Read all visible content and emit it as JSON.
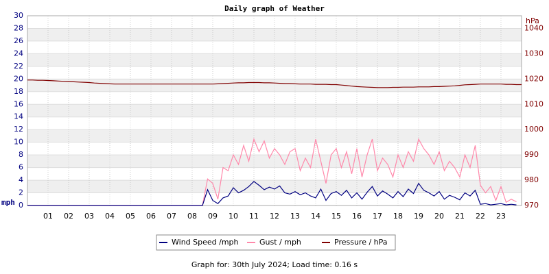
{
  "chart_data": {
    "type": "line",
    "title": "Daily graph of Weather",
    "ylabel": "mph",
    "y2label": "hPa",
    "footer": "Graph for: 30th July 2024; Load time: 0.16 s",
    "grid": true,
    "xlim": [
      0,
      24
    ],
    "xticks": [
      {
        "value": 1,
        "label": "01"
      },
      {
        "value": 2,
        "label": "02"
      },
      {
        "value": 3,
        "label": "03"
      },
      {
        "value": 4,
        "label": "04"
      },
      {
        "value": 5,
        "label": "05"
      },
      {
        "value": 6,
        "label": "06"
      },
      {
        "value": 7,
        "label": "07"
      },
      {
        "value": 8,
        "label": "08"
      },
      {
        "value": 9,
        "label": "09"
      },
      10,
      11,
      12,
      13,
      14,
      15,
      16,
      17,
      18,
      19,
      20,
      21,
      22,
      23
    ],
    "ylim": [
      0,
      30
    ],
    "yticks": [
      0,
      2,
      4,
      6,
      8,
      10,
      12,
      14,
      16,
      18,
      20,
      22,
      24,
      26,
      28,
      30
    ],
    "y2lim": [
      970,
      1045
    ],
    "y2ticks": [
      970,
      980,
      990,
      1000,
      1010,
      1020,
      1030,
      1040
    ],
    "x": [
      0,
      0.25,
      0.5,
      0.75,
      1,
      1.25,
      1.5,
      1.75,
      2,
      2.25,
      2.5,
      2.75,
      3,
      3.25,
      3.5,
      3.75,
      4,
      4.25,
      4.5,
      4.75,
      5,
      5.25,
      5.5,
      5.75,
      6,
      6.25,
      6.5,
      6.75,
      7,
      7.25,
      7.5,
      7.75,
      8,
      8.25,
      8.5,
      8.75,
      9,
      9.25,
      9.5,
      9.75,
      10,
      10.25,
      10.5,
      10.75,
      11,
      11.25,
      11.5,
      11.75,
      12,
      12.25,
      12.5,
      12.75,
      13,
      13.25,
      13.5,
      13.75,
      14,
      14.25,
      14.5,
      14.75,
      15,
      15.25,
      15.5,
      15.75,
      16,
      16.25,
      16.5,
      16.75,
      17,
      17.25,
      17.5,
      17.75,
      18,
      18.25,
      18.5,
      18.75,
      19,
      19.25,
      19.5,
      19.75,
      20,
      20.25,
      20.5,
      20.75,
      21,
      21.25,
      21.5,
      21.75,
      22,
      22.25,
      22.5,
      22.75,
      23,
      23.25,
      23.5,
      23.75,
      24
    ],
    "series": [
      {
        "name": "Wind Speed /mph",
        "color": "#000080",
        "values": [
          0,
          0,
          0,
          0,
          0,
          0,
          0,
          0,
          0,
          0,
          0,
          0,
          0,
          0,
          0,
          0,
          0,
          0,
          0,
          0,
          0,
          0,
          0,
          0,
          0,
          0,
          0,
          0,
          0,
          0,
          0,
          0,
          0,
          0,
          0,
          2.5,
          0.8,
          0.3,
          1.2,
          1.5,
          2.8,
          2.0,
          2.4,
          3.0,
          3.8,
          3.2,
          2.5,
          2.9,
          2.6,
          3.1,
          2.0,
          1.8,
          2.2,
          1.7,
          2.0,
          1.5,
          1.2,
          2.6,
          0.8,
          1.9,
          2.2,
          1.6,
          2.4,
          1.2,
          2.0,
          1.0,
          2.1,
          3.0,
          1.5,
          2.3,
          1.8,
          1.2,
          2.2,
          1.4,
          2.6,
          1.9,
          3.5,
          2.4,
          2.0,
          1.5,
          2.2,
          1.0,
          1.6,
          1.3,
          0.9,
          2.0,
          1.5,
          2.4,
          0.2,
          0.3,
          0.1,
          0.2,
          0.3,
          0.1,
          0.2,
          0.1,
          null
        ]
      },
      {
        "name": "Gust / mph",
        "color": "#ff88aa",
        "values": [
          0,
          0,
          0,
          0,
          0,
          0,
          0,
          0,
          0,
          0,
          0,
          0,
          0,
          0,
          0,
          0,
          0,
          0,
          0,
          0,
          0,
          0,
          0,
          0,
          0,
          0,
          0,
          0,
          0,
          0,
          0,
          0,
          0,
          0,
          0,
          4.2,
          3.5,
          1.0,
          6.0,
          5.5,
          8.0,
          6.5,
          9.5,
          7.0,
          10.5,
          8.5,
          10.2,
          7.5,
          9.0,
          8.0,
          6.5,
          8.5,
          9.0,
          5.5,
          7.5,
          6.0,
          10.5,
          7.0,
          3.5,
          8.0,
          9.0,
          6.0,
          8.5,
          5.0,
          9.0,
          4.5,
          8.0,
          10.5,
          5.5,
          7.5,
          6.5,
          4.5,
          8.0,
          6.0,
          8.5,
          7.0,
          10.5,
          9.0,
          8.0,
          6.5,
          8.5,
          5.5,
          7.0,
          6.0,
          4.5,
          8.0,
          6.0,
          9.5,
          3.2,
          2.0,
          3.0,
          0.8,
          3.0,
          0.5,
          1.0,
          0.6,
          null
        ]
      },
      {
        "name": "Pressure / hPa",
        "color": "#800000",
        "axis": "y2",
        "values": [
          1019.6,
          1019.6,
          1019.5,
          1019.5,
          1019.4,
          1019.3,
          1019.2,
          1019.1,
          1019.0,
          1018.9,
          1018.8,
          1018.7,
          1018.6,
          1018.4,
          1018.3,
          1018.2,
          1018.1,
          1018.0,
          1018.0,
          1018.0,
          1018.0,
          1018.0,
          1018.0,
          1018.0,
          1018.0,
          1018.0,
          1018.0,
          1018.0,
          1018.0,
          1018.0,
          1018.0,
          1018.0,
          1018.0,
          1018.0,
          1018.0,
          1018.0,
          1018.0,
          1018.1,
          1018.2,
          1018.3,
          1018.4,
          1018.5,
          1018.5,
          1018.6,
          1018.6,
          1018.6,
          1018.5,
          1018.5,
          1018.4,
          1018.3,
          1018.2,
          1018.2,
          1018.1,
          1018.0,
          1018.0,
          1018.0,
          1017.9,
          1017.9,
          1017.9,
          1017.8,
          1017.8,
          1017.6,
          1017.4,
          1017.2,
          1017.0,
          1016.9,
          1016.8,
          1016.7,
          1016.6,
          1016.6,
          1016.6,
          1016.7,
          1016.7,
          1016.8,
          1016.8,
          1016.8,
          1016.9,
          1016.9,
          1016.9,
          1017.0,
          1017.0,
          1017.1,
          1017.2,
          1017.3,
          1017.5,
          1017.7,
          1017.8,
          1017.9,
          1018.0,
          1018.0,
          1018.0,
          1018.0,
          1018.0,
          1017.9,
          1017.9,
          1017.8,
          1017.8
        ]
      }
    ]
  }
}
